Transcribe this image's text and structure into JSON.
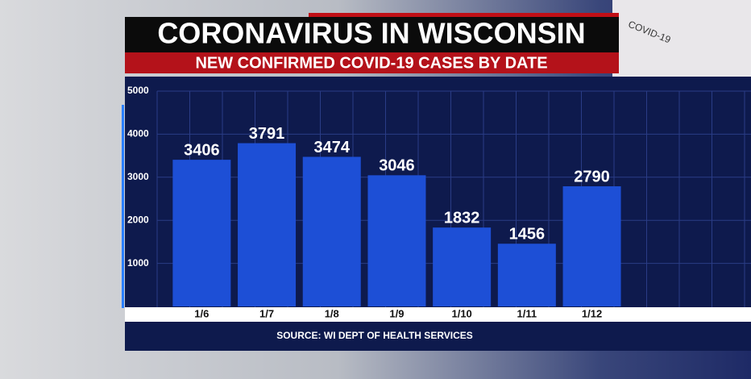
{
  "chart_data": {
    "type": "bar",
    "title": "CORONAVIRUS IN WISCONSIN",
    "subtitle": "NEW CONFIRMED COVID-19 CASES BY DATE",
    "source": "SOURCE: WI DEPT OF HEALTH SERVICES",
    "background_text": "COVID-19",
    "categories": [
      "1/6",
      "1/7",
      "1/8",
      "1/9",
      "1/10",
      "1/11",
      "1/12"
    ],
    "values": [
      3406,
      3791,
      3474,
      3046,
      1832,
      1456,
      2790
    ],
    "color": "#1d4fd6",
    "ylim": [
      0,
      5000
    ],
    "yticks": [
      1000,
      2000,
      3000,
      4000,
      5000
    ],
    "grid": true
  }
}
